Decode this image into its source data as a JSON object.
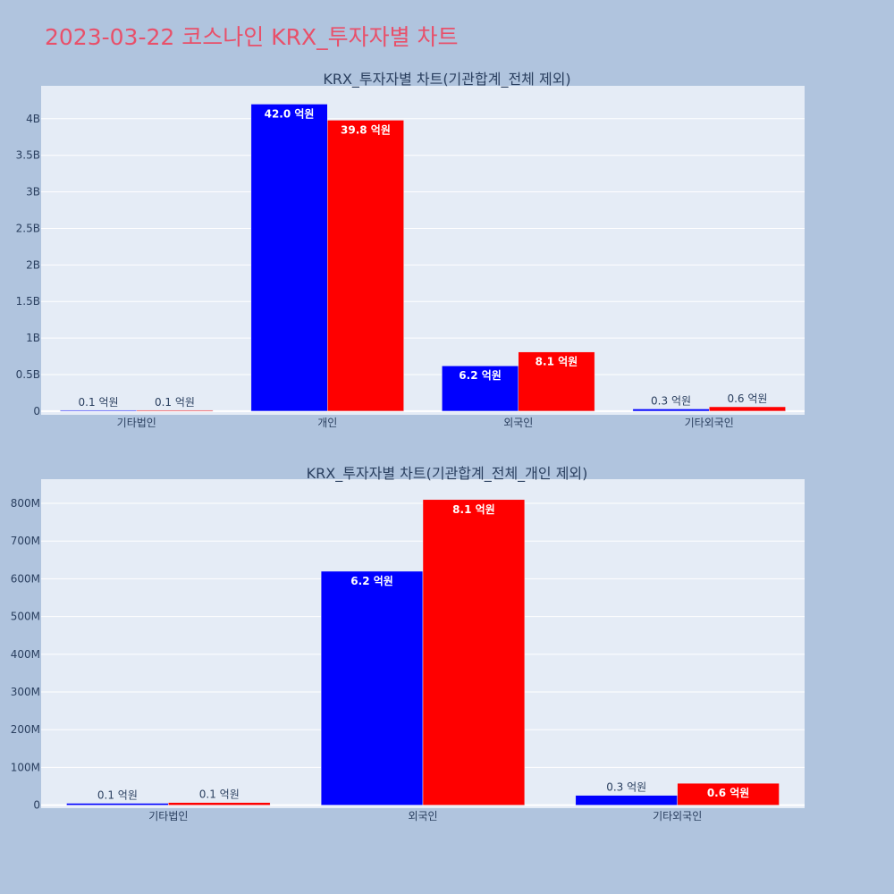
{
  "page": {
    "title": "2023-03-22 코스나인 KRX_투자자별 차트"
  },
  "colors": {
    "background": "#b0c4de",
    "plot_background": "#e5ecf6",
    "series_1": "#0000ff",
    "series_2": "#ff0000",
    "title": "#e8506a"
  },
  "chart_data": [
    {
      "type": "bar",
      "title": "KRX_투자자별 차트(기관합계_전체 제외)",
      "categories": [
        "기타법인",
        "개인",
        "외국인",
        "기타외국인"
      ],
      "series": [
        {
          "color": "#0000ff",
          "values": [
            10000000,
            4200000000,
            620000000,
            30000000
          ],
          "labels": [
            "0.1 억원",
            "42.0 억원",
            "6.2 억원",
            "0.3 억원"
          ]
        },
        {
          "color": "#ff0000",
          "values": [
            10000000,
            3980000000,
            810000000,
            60000000
          ],
          "labels": [
            "0.1 억원",
            "39.8 억원",
            "8.1 억원",
            "0.6 억원"
          ]
        }
      ],
      "ylim": [
        -50000000,
        4450000000
      ],
      "yticks": [
        0,
        500000000,
        1000000000,
        1500000000,
        2000000000,
        2500000000,
        3000000000,
        3500000000,
        4000000000
      ],
      "ytick_labels": [
        "0",
        "0.5B",
        "1B",
        "1.5B",
        "2B",
        "2.5B",
        "3B",
        "3.5B",
        "4B"
      ],
      "grid": true
    },
    {
      "type": "bar",
      "title": "KRX_투자자별 차트(기관합계_전체_개인 제외)",
      "categories": [
        "기타법인",
        "외국인",
        "기타외국인"
      ],
      "series": [
        {
          "color": "#0000ff",
          "values": [
            5000000,
            620000000,
            26000000
          ],
          "labels": [
            "0.1 억원",
            "6.2 억원",
            "0.3 억원"
          ]
        },
        {
          "color": "#ff0000",
          "values": [
            7000000,
            810000000,
            58000000
          ],
          "labels": [
            "0.1 억원",
            "8.1 억원",
            "0.6 억원"
          ]
        }
      ],
      "ylim": [
        -8000000,
        864000000
      ],
      "yticks": [
        0,
        100000000,
        200000000,
        300000000,
        400000000,
        500000000,
        600000000,
        700000000,
        800000000
      ],
      "ytick_labels": [
        "0",
        "100M",
        "200M",
        "300M",
        "400M",
        "500M",
        "600M",
        "700M",
        "800M"
      ],
      "grid": true
    }
  ]
}
